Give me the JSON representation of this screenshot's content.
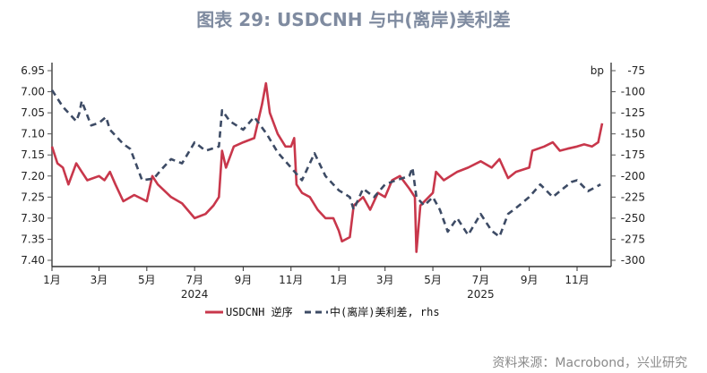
{
  "chart_data": {
    "type": "line",
    "title": "图表 29: USDCNH 与中(离岸)美利差",
    "source": "资料来源：Macrobond，兴业研究",
    "left_axis": {
      "ylim": [
        6.95,
        7.4
      ],
      "inverted": true,
      "ticks": [
        "6.95",
        "7.00",
        "7.05",
        "7.10",
        "7.15",
        "7.20",
        "7.25",
        "7.30",
        "7.35",
        "7.40"
      ]
    },
    "right_axis": {
      "unit": "bp",
      "ylim": [
        -300,
        -75
      ],
      "ticks": [
        "-75",
        "-100",
        "-125",
        "-150",
        "-175",
        "-200",
        "-225",
        "-250",
        "-275",
        "-300"
      ]
    },
    "x_ticks": [
      {
        "date": "2024-01-01",
        "label": "1月"
      },
      {
        "date": "2024-03-01",
        "label": "3月"
      },
      {
        "date": "2024-05-01",
        "label": "5月"
      },
      {
        "date": "2024-07-01",
        "label": "7月"
      },
      {
        "date": "2024-09-01",
        "label": "9月"
      },
      {
        "date": "2024-11-01",
        "label": "11月"
      },
      {
        "date": "2025-01-01",
        "label": "1月"
      },
      {
        "date": "2025-03-01",
        "label": "3月"
      },
      {
        "date": "2025-05-01",
        "label": "5月"
      },
      {
        "date": "2025-07-01",
        "label": "7月"
      },
      {
        "date": "2025-09-01",
        "label": "9月"
      },
      {
        "date": "2025-11-01",
        "label": "11月"
      }
    ],
    "year_labels": [
      {
        "date": "2024-07-01",
        "label": "2024"
      },
      {
        "date": "2025-07-01",
        "label": "2025"
      }
    ],
    "legend": {
      "position": "bottom-center"
    },
    "grid": false,
    "series": [
      {
        "name": "USDCNH 逆序",
        "axis": "left",
        "color": "#c8374b",
        "style": "solid",
        "points": [
          [
            "2024-01-01",
            7.13
          ],
          [
            "2024-01-08",
            7.17
          ],
          [
            "2024-01-15",
            7.18
          ],
          [
            "2024-01-22",
            7.22
          ],
          [
            "2024-02-01",
            7.17
          ],
          [
            "2024-02-08",
            7.19
          ],
          [
            "2024-02-15",
            7.21
          ],
          [
            "2024-03-01",
            7.2
          ],
          [
            "2024-03-08",
            7.21
          ],
          [
            "2024-03-15",
            7.19
          ],
          [
            "2024-03-22",
            7.22
          ],
          [
            "2024-04-01",
            7.26
          ],
          [
            "2024-04-15",
            7.245
          ],
          [
            "2024-05-01",
            7.26
          ],
          [
            "2024-05-08",
            7.2
          ],
          [
            "2024-05-15",
            7.22
          ],
          [
            "2024-06-01",
            7.25
          ],
          [
            "2024-06-15",
            7.265
          ],
          [
            "2024-07-01",
            7.3
          ],
          [
            "2024-07-15",
            7.29
          ],
          [
            "2024-07-25",
            7.27
          ],
          [
            "2024-08-01",
            7.25
          ],
          [
            "2024-08-05",
            7.14
          ],
          [
            "2024-08-10",
            7.18
          ],
          [
            "2024-08-20",
            7.13
          ],
          [
            "2024-09-01",
            7.12
          ],
          [
            "2024-09-15",
            7.11
          ],
          [
            "2024-09-25",
            7.03
          ],
          [
            "2024-09-30",
            6.98
          ],
          [
            "2024-10-05",
            7.05
          ],
          [
            "2024-10-15",
            7.1
          ],
          [
            "2024-10-25",
            7.13
          ],
          [
            "2024-11-01",
            7.13
          ],
          [
            "2024-11-05",
            7.11
          ],
          [
            "2024-11-08",
            7.22
          ],
          [
            "2024-11-15",
            7.24
          ],
          [
            "2024-11-25",
            7.25
          ],
          [
            "2024-12-05",
            7.28
          ],
          [
            "2024-12-15",
            7.3
          ],
          [
            "2024-12-25",
            7.3
          ],
          [
            "2025-01-01",
            7.33
          ],
          [
            "2025-01-05",
            7.355
          ],
          [
            "2025-01-15",
            7.345
          ],
          [
            "2025-01-20",
            7.27
          ],
          [
            "2025-02-01",
            7.25
          ],
          [
            "2025-02-10",
            7.28
          ],
          [
            "2025-02-20",
            7.24
          ],
          [
            "2025-03-01",
            7.25
          ],
          [
            "2025-03-10",
            7.21
          ],
          [
            "2025-03-20",
            7.2
          ],
          [
            "2025-04-01",
            7.23
          ],
          [
            "2025-04-08",
            7.25
          ],
          [
            "2025-04-10",
            7.38
          ],
          [
            "2025-04-15",
            7.27
          ],
          [
            "2025-05-01",
            7.24
          ],
          [
            "2025-05-05",
            7.19
          ],
          [
            "2025-05-15",
            7.21
          ],
          [
            "2025-06-01",
            7.19
          ],
          [
            "2025-06-15",
            7.18
          ],
          [
            "2025-07-01",
            7.165
          ],
          [
            "2025-07-15",
            7.18
          ],
          [
            "2025-07-25",
            7.16
          ],
          [
            "2025-08-05",
            7.205
          ],
          [
            "2025-08-15",
            7.19
          ],
          [
            "2025-09-01",
            7.18
          ],
          [
            "2025-09-05",
            7.14
          ],
          [
            "2025-09-20",
            7.13
          ],
          [
            "2025-10-01",
            7.12
          ],
          [
            "2025-10-10",
            7.14
          ],
          [
            "2025-10-20",
            7.135
          ],
          [
            "2025-11-01",
            7.13
          ],
          [
            "2025-11-10",
            7.125
          ],
          [
            "2025-11-20",
            7.13
          ],
          [
            "2025-11-28",
            7.12
          ],
          [
            "2025-12-03",
            7.075
          ]
        ]
      },
      {
        "name": "中(离岸)美利差, rhs",
        "axis": "right",
        "color": "#3d4b65",
        "style": "dashed",
        "points": [
          [
            "2024-01-01",
            -98
          ],
          [
            "2024-01-15",
            -118
          ],
          [
            "2024-02-01",
            -135
          ],
          [
            "2024-02-05",
            -125
          ],
          [
            "2024-02-08",
            -111
          ],
          [
            "2024-02-20",
            -140
          ],
          [
            "2024-03-01",
            -137
          ],
          [
            "2024-03-10",
            -130
          ],
          [
            "2024-03-15",
            -145
          ],
          [
            "2024-04-01",
            -162
          ],
          [
            "2024-04-10",
            -168
          ],
          [
            "2024-04-25",
            -205
          ],
          [
            "2024-05-10",
            -203
          ],
          [
            "2024-05-20",
            -192
          ],
          [
            "2024-06-01",
            -180
          ],
          [
            "2024-06-15",
            -185
          ],
          [
            "2024-07-01",
            -160
          ],
          [
            "2024-07-15",
            -170
          ],
          [
            "2024-08-01",
            -165
          ],
          [
            "2024-08-05",
            -122
          ],
          [
            "2024-08-15",
            -135
          ],
          [
            "2024-09-01",
            -145
          ],
          [
            "2024-09-15",
            -130
          ],
          [
            "2024-10-01",
            -150
          ],
          [
            "2024-10-15",
            -172
          ],
          [
            "2024-11-01",
            -190
          ],
          [
            "2024-11-15",
            -205
          ],
          [
            "2024-12-01",
            -173
          ],
          [
            "2024-12-15",
            -200
          ],
          [
            "2025-01-01",
            -217
          ],
          [
            "2025-01-15",
            -225
          ],
          [
            "2025-01-20",
            -240
          ],
          [
            "2025-02-01",
            -215
          ],
          [
            "2025-02-15",
            -225
          ],
          [
            "2025-03-01",
            -210
          ],
          [
            "2025-03-15",
            -205
          ],
          [
            "2025-04-01",
            -200
          ],
          [
            "2025-04-05",
            -190
          ],
          [
            "2025-04-10",
            -225
          ],
          [
            "2025-04-20",
            -235
          ],
          [
            "2025-05-01",
            -225
          ],
          [
            "2025-05-10",
            -240
          ],
          [
            "2025-05-20",
            -266
          ],
          [
            "2025-06-01",
            -250
          ],
          [
            "2025-06-15",
            -270
          ],
          [
            "2025-07-01",
            -245
          ],
          [
            "2025-07-15",
            -265
          ],
          [
            "2025-07-25",
            -272
          ],
          [
            "2025-08-05",
            -245
          ],
          [
            "2025-08-15",
            -238
          ],
          [
            "2025-09-01",
            -225
          ],
          [
            "2025-09-15",
            -210
          ],
          [
            "2025-10-01",
            -225
          ],
          [
            "2025-10-10",
            -218
          ],
          [
            "2025-10-25",
            -207
          ],
          [
            "2025-11-01",
            -205
          ],
          [
            "2025-11-15",
            -218
          ],
          [
            "2025-12-01",
            -210
          ]
        ]
      }
    ]
  }
}
